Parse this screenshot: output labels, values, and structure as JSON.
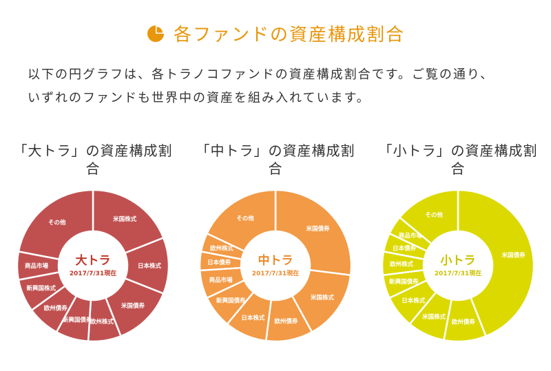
{
  "header": {
    "title": "各ファンドの資産構成割合",
    "icon": "pie-chart-icon",
    "accent": "#e8960c"
  },
  "intro": {
    "line1": "以下の円グラフは、各トラノコファンドの資産構成割合です。ご覧の通り、",
    "line2": "いずれのファンドも世界中の資産を組み入れています。"
  },
  "chart_data": [
    {
      "type": "pie",
      "title": "「大トラ」の資産構成割合",
      "center_label": "大トラ",
      "center_date": "2017/7/31現在",
      "color": "#c05050",
      "center_color": "#c0392b",
      "categories": [
        "米国株式",
        "日本株式",
        "米国債券",
        "欧州株式",
        "新興国債券",
        "欧州債券",
        "新興国株式",
        "商品市場",
        "その他"
      ],
      "values": [
        19,
        12,
        13,
        7,
        7,
        7,
        7,
        6,
        22
      ]
    },
    {
      "type": "pie",
      "title": "「中トラ」の資産構成割合",
      "center_label": "中トラ",
      "center_date": "2017/7/31現在",
      "color": "#f29a45",
      "center_color": "#ee8a2e",
      "categories": [
        "米国債券",
        "米国株式",
        "欧州債券",
        "日本株式",
        "新興国債券",
        "商品市場",
        "日本債券",
        "欧州株式",
        "その他"
      ],
      "values": [
        27,
        15,
        10,
        9,
        7,
        6,
        4,
        4,
        18
      ]
    },
    {
      "type": "pie",
      "title": "「小トラ」の資産構成割合",
      "center_label": "小トラ",
      "center_date": "2017/7/31現在",
      "color": "#dcd900",
      "center_color": "#c9c200",
      "categories": [
        "米国債券",
        "欧州債券",
        "米国株式",
        "日本株式",
        "新興国債券",
        "欧州株式",
        "日本債券",
        "商品市場",
        "その他"
      ],
      "values": [
        44,
        9,
        8,
        7,
        5,
        5,
        4,
        4,
        14
      ]
    }
  ]
}
